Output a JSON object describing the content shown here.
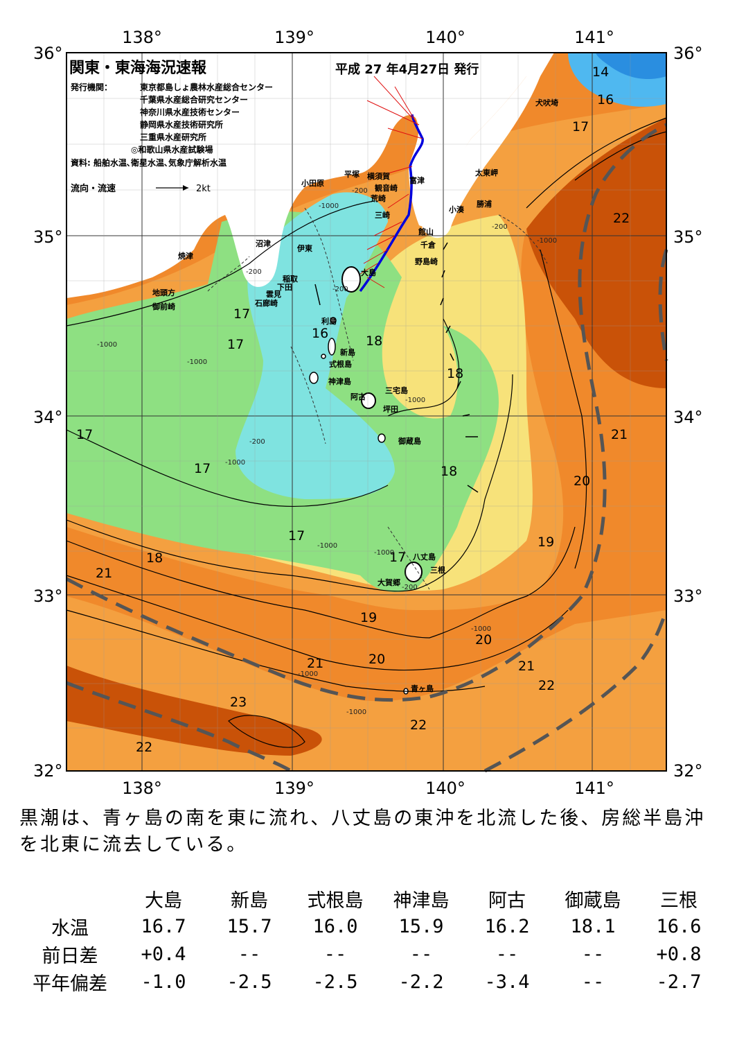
{
  "map": {
    "title": "関東・東海海況速報",
    "date": "平成 27 年4月27日 発行",
    "issuer_label": "発行機関：",
    "issuers": [
      "東京都島しょ農林水産総合センター",
      "千葉県水産総合研究センター",
      "神奈川県水産技術センター",
      "静岡県水産技術研究所",
      "三重県水産研究所",
      "◎和歌山県水産試験場"
    ],
    "source": "資料: 船舶水温､衛星水温､気象庁解析水温",
    "legend_label": "流向・流速",
    "legend_unit": "2kt",
    "lon_labels": [
      "138°",
      "139°",
      "140°",
      "141°"
    ],
    "lat_labels": [
      "36°",
      "35°",
      "34°",
      "33°",
      "32°"
    ],
    "places": [
      "犬吠埼",
      "太東岬",
      "勝浦",
      "小湊",
      "館山",
      "千倉",
      "野島崎",
      "富津",
      "横須賀",
      "観音崎",
      "荒崎",
      "三崎",
      "平塚",
      "小田原",
      "沼津",
      "伊東",
      "焼津",
      "稲取",
      "下田",
      "雲見",
      "石廊崎",
      "地頭方",
      "御前崎",
      "大島",
      "利島",
      "新島",
      "式根島",
      "神津島",
      "三宅島",
      "阿古",
      "坪田",
      "御蔵島",
      "八丈島",
      "三根",
      "大賀郷",
      "青ヶ島"
    ],
    "isotherm_labels": [
      "14",
      "16",
      "17",
      "22",
      "17",
      "17",
      "16",
      "18",
      "18",
      "17",
      "21",
      "17",
      "18",
      "20",
      "19",
      "17",
      "18",
      "21",
      "17",
      "19",
      "20",
      "20",
      "21",
      "21",
      "22",
      "23",
      "22",
      "22"
    ],
    "depth_labels": [
      "-200",
      "-1000"
    ]
  },
  "summary": "黒潮は、青ヶ島の南を東に流れ、八丈島の東沖を北流した後、房総半島沖を北東に流去している。",
  "table": {
    "columns": [
      "大島",
      "新島",
      "式根島",
      "神津島",
      "阿古",
      "御蔵島",
      "三根"
    ],
    "rows": [
      {
        "label": "水温",
        "values": [
          "16.7",
          "15.7",
          "16.0",
          "15.9",
          "16.2",
          "18.1",
          "16.6"
        ]
      },
      {
        "label": "前日差",
        "values": [
          "+0.4",
          "--",
          "--",
          "--",
          "--",
          "--",
          "+0.8"
        ]
      },
      {
        "label": "平年偏差",
        "values": [
          "-1.0",
          "-2.5",
          "-2.5",
          "-2.2",
          "-3.4",
          "--",
          "-2.7"
        ]
      }
    ]
  },
  "colors": {
    "warm": "#e8741c",
    "hot": "#c95208",
    "orange": "#f4a040",
    "yellow": "#f7e27a",
    "green": "#8ee082",
    "cyan": "#7fe3e0",
    "blue": "#4fb8f0",
    "land": "#ffffff",
    "kuroshio": "#555555",
    "track": "#0000dd"
  }
}
